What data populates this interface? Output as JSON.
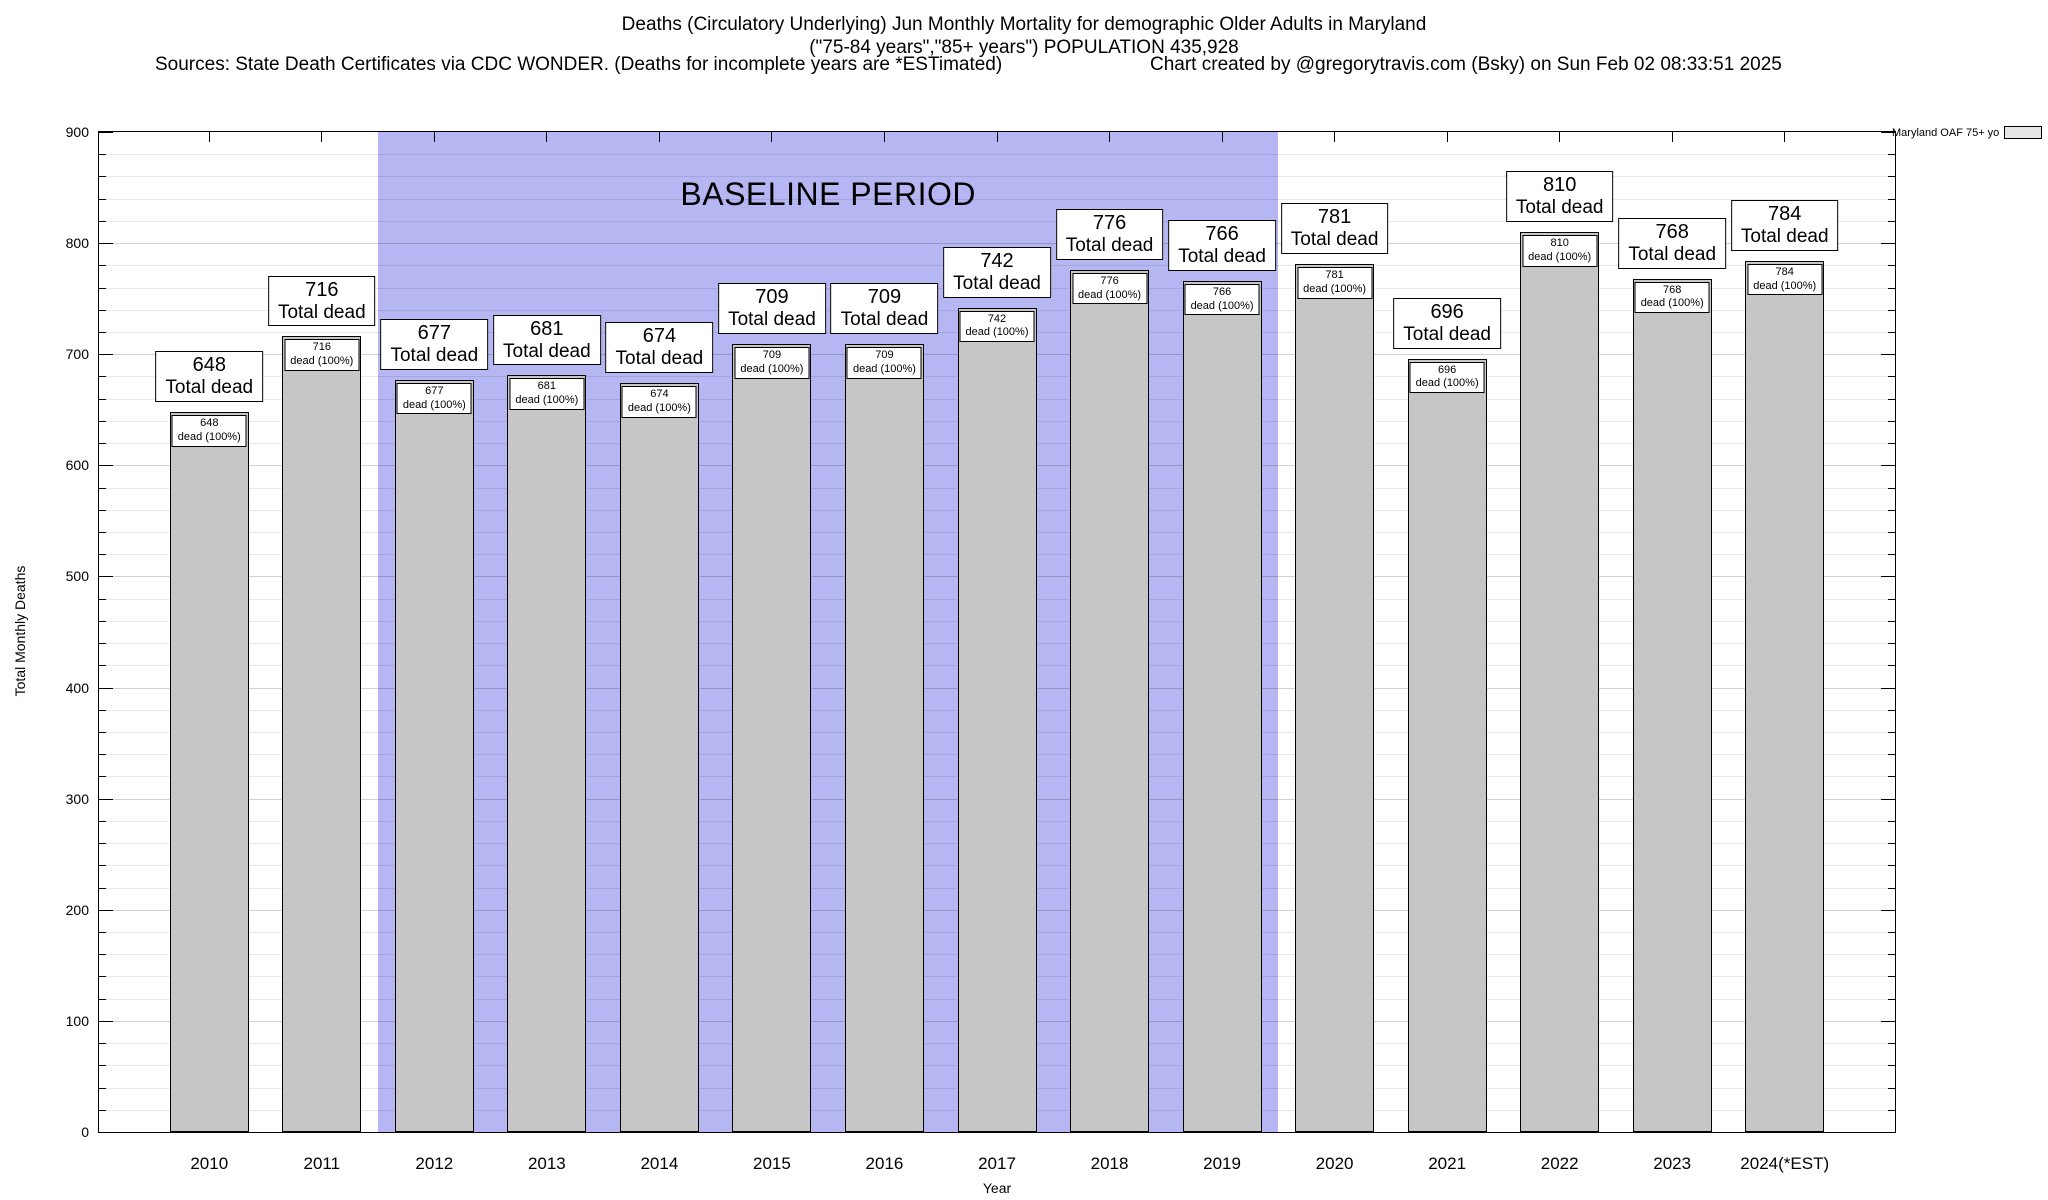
{
  "header": {
    "title_line1": "Deaths (Circulatory Underlying) Jun Monthly Mortality for demographic Older Adults in Maryland",
    "title_line2": "(\"75-84 years\",\"85+ years\") POPULATION 435,928",
    "sources": "Sources: State Death Certificates via CDC WONDER. (Deaths for incomplete years are *ESTimated)",
    "credit": "Chart created by @gregorytravis.com (Bsky) on Sun Feb 02 08:33:51 2025"
  },
  "chart_data": {
    "type": "bar",
    "title": "Deaths (Circulatory Underlying) Jun Monthly Mortality for demographic Older Adults in Maryland",
    "xlabel": "Year",
    "ylabel": "Total Monthly Deaths",
    "ylim": [
      0,
      900
    ],
    "ytick_interval": 100,
    "minor_tick_interval": 20,
    "grid": true,
    "categories": [
      "2010",
      "2011",
      "2012",
      "2013",
      "2014",
      "2015",
      "2016",
      "2017",
      "2018",
      "2019",
      "2020",
      "2021",
      "2022",
      "2023",
      "2024(*EST)"
    ],
    "values": [
      648,
      716,
      677,
      681,
      674,
      709,
      709,
      742,
      776,
      766,
      781,
      696,
      810,
      768,
      784
    ],
    "bar_color": "#c6c6c6",
    "bar_border_color": "#000000",
    "bar_label_line2": "Total dead",
    "bar_inner_label_line2": "dead (100%)",
    "baseline_band": {
      "label": "BASELINE PERIOD",
      "start_category": "2012",
      "end_category": "2019",
      "start_index": 2,
      "end_index": 9,
      "color": "#b6b6f3"
    },
    "legend": {
      "label": "Maryland OAF 75+ yo",
      "position": "top-right"
    }
  }
}
